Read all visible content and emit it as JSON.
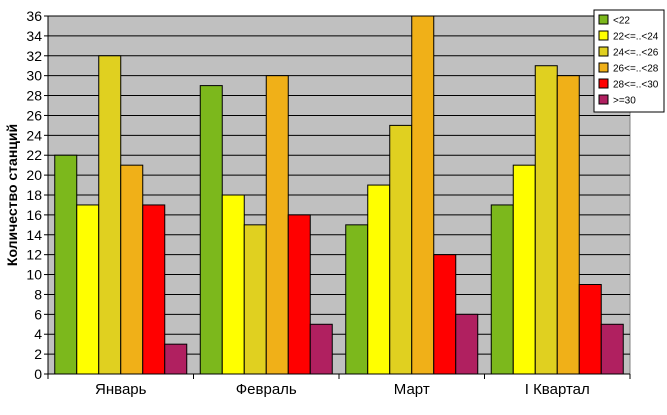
{
  "chart_data": {
    "type": "bar",
    "categories": [
      "Январь",
      "Февраль",
      "Март",
      "I Квартал"
    ],
    "ylabel": "Количество станций",
    "xlabel": "",
    "ylim": [
      0,
      36
    ],
    "ytick_step": 2,
    "grid": true,
    "legend_position": "top-right",
    "plot_background": "#c0c0c0",
    "series": [
      {
        "name": "<22",
        "color": "#7cb81c",
        "values": [
          22,
          29,
          15,
          17
        ]
      },
      {
        "name": "22<=..<24",
        "color": "#ffff00",
        "values": [
          17,
          18,
          19,
          21
        ]
      },
      {
        "name": "24<=..<26",
        "color": "#e0d020",
        "values": [
          32,
          15,
          25,
          31
        ]
      },
      {
        "name": "26<=..<28",
        "color": "#f0b018",
        "values": [
          21,
          30,
          36,
          30
        ]
      },
      {
        "name": "28<=..<30",
        "color": "#ff0000",
        "values": [
          17,
          16,
          12,
          9
        ]
      },
      {
        "name": ">=30",
        "color": "#b02060",
        "values": [
          3,
          5,
          6,
          5
        ]
      }
    ]
  }
}
